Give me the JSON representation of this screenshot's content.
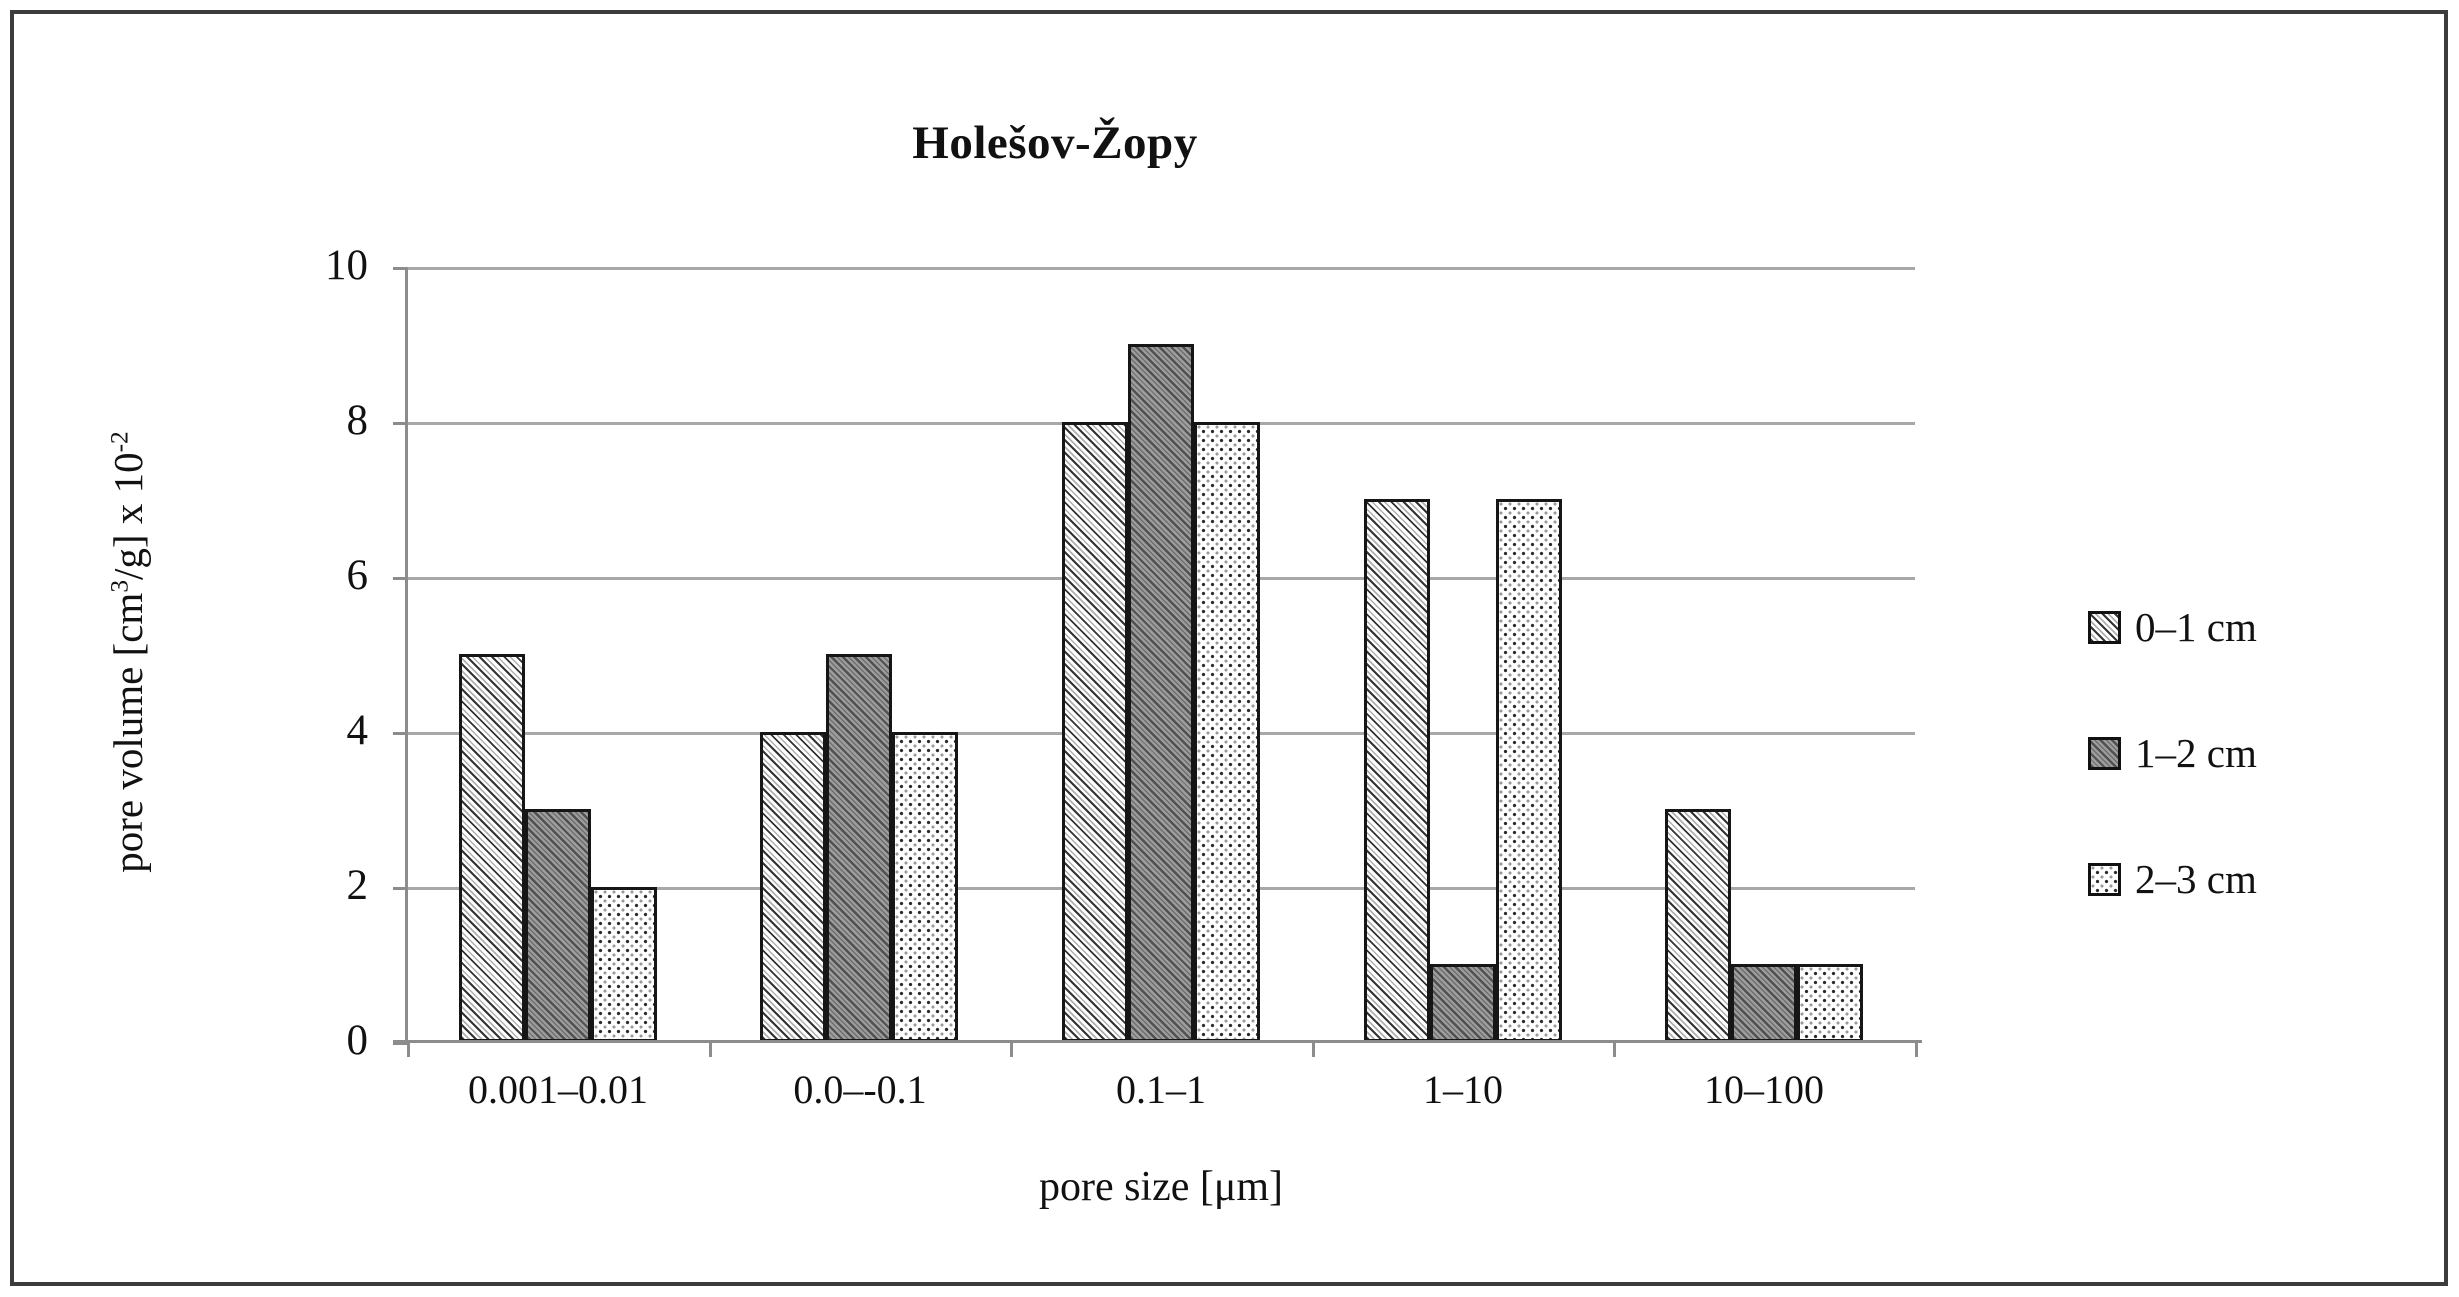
{
  "chart_data": {
    "type": "bar",
    "title": "Holešov-Žopy",
    "categories": [
      "0.001–0.01",
      "0.0–-0.1",
      "0.1–1",
      "1–10",
      "10–100"
    ],
    "series": [
      {
        "name": "0–1 cm",
        "pattern": "light-diagonal-hatch",
        "values": [
          5,
          4,
          8,
          7,
          3
        ]
      },
      {
        "name": "1–2 cm",
        "pattern": "dark-diagonal-hatch",
        "values": [
          3,
          5,
          9,
          1,
          1
        ]
      },
      {
        "name": "2–3 cm",
        "pattern": "light-dotted",
        "values": [
          2,
          4,
          8,
          7,
          1
        ]
      }
    ],
    "xlabel": "pore size [μm]",
    "ylabel": "pore volume [cm³/g] x 10⁻²",
    "ylabel_parts": {
      "pre": "pore volume [cm",
      "sup1": "3",
      "mid": "/g] x 10",
      "sup2": "-2"
    },
    "ylim": [
      0,
      10
    ],
    "yticks": [
      "0",
      "2",
      "4",
      "6",
      "8",
      "10"
    ],
    "grid": "horizontal",
    "legend_position": "right",
    "colors": {
      "axis": "#8c8c8c",
      "gridline": "#a8a8a8",
      "bar_outline": "#161616",
      "frame": "#3c3c3c",
      "text": "#111111"
    }
  }
}
